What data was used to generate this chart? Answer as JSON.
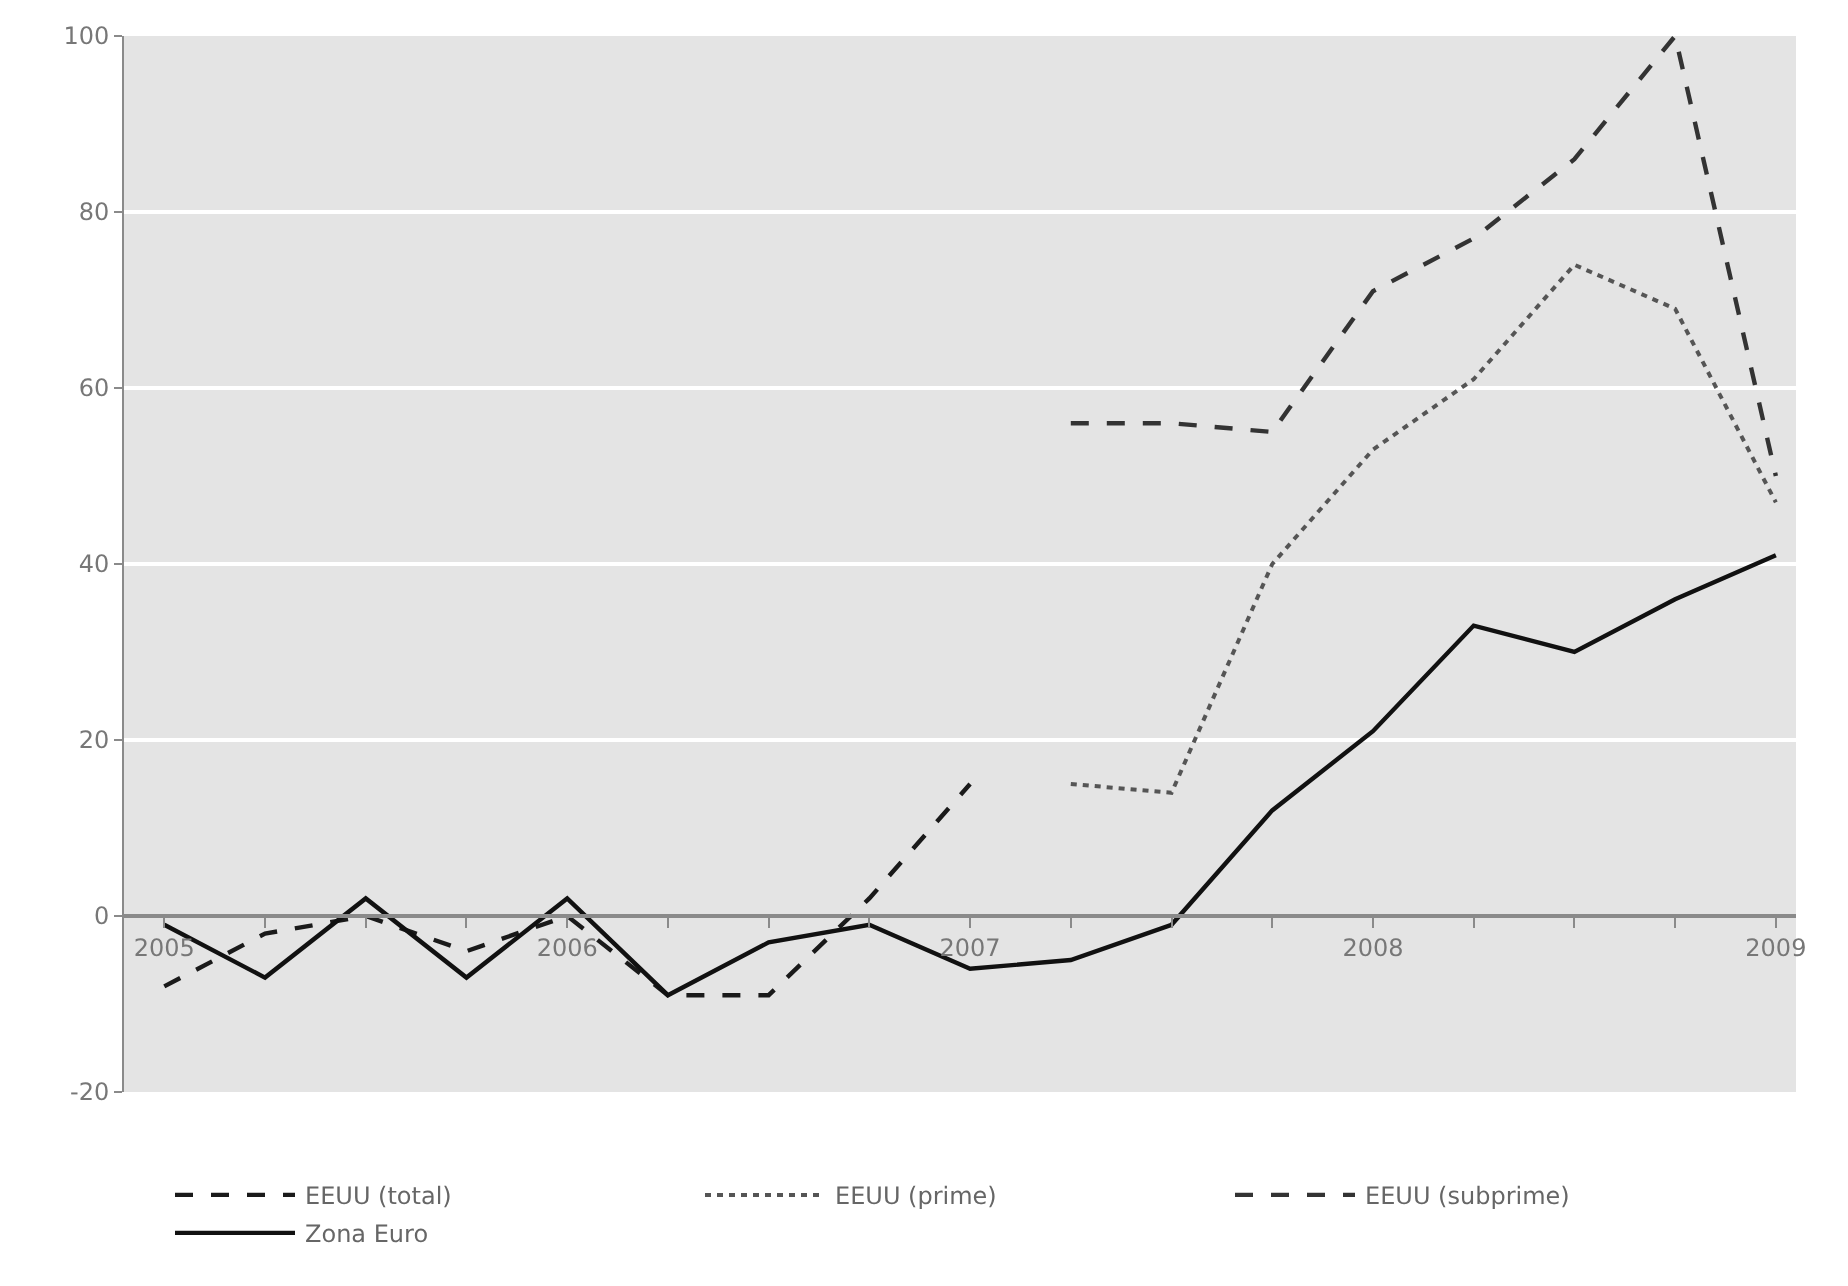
{
  "chart_data": {
    "type": "line",
    "x": [
      2005,
      2005.25,
      2005.5,
      2005.75,
      2006,
      2006.25,
      2006.5,
      2006.75,
      2007,
      2007.25,
      2007.5,
      2007.75,
      2008,
      2008.25,
      2008.5,
      2008.75,
      2009
    ],
    "series": [
      {
        "name": "EEUU (total)",
        "color": "#1a1a1a",
        "line_style": "dashed",
        "values": [
          -8,
          -2,
          0,
          -4,
          0,
          -9,
          -9,
          2,
          15,
          null,
          null,
          null,
          null,
          null,
          null,
          null,
          null
        ]
      },
      {
        "name": "EEUU (prime)",
        "color": "#555555",
        "line_style": "dotted",
        "values": [
          null,
          null,
          null,
          null,
          null,
          null,
          null,
          null,
          null,
          15,
          14,
          40,
          53,
          61,
          74,
          69,
          47
        ]
      },
      {
        "name": "EEUU (subprime)",
        "color": "#333333",
        "line_style": "dashed",
        "values": [
          null,
          null,
          null,
          null,
          null,
          null,
          null,
          null,
          null,
          56,
          56,
          55,
          71,
          77,
          86,
          100,
          50
        ]
      },
      {
        "name": "Zona Euro",
        "color": "#111111",
        "line_style": "solid",
        "values": [
          -1,
          -7,
          2,
          -7,
          2,
          -9,
          -3,
          -1,
          -6,
          -5,
          -1,
          12,
          21,
          33,
          30,
          36,
          41
        ]
      }
    ],
    "xlim": [
      2004.9,
      2009.05
    ],
    "xticks": [
      2005,
      {
        "value": 2005.25,
        "label": null
      },
      {
        "value": 2005.5,
        "label": null
      },
      {
        "value": 2005.75,
        "label": null
      },
      2006,
      {
        "value": 2006.25,
        "label": null
      },
      {
        "value": 2006.5,
        "label": null
      },
      {
        "value": 2006.75,
        "label": null
      },
      2007,
      {
        "value": 2007.25,
        "label": null
      },
      {
        "value": 2007.5,
        "label": null
      },
      {
        "value": 2007.75,
        "label": null
      },
      2008,
      {
        "value": 2008.25,
        "label": null
      },
      {
        "value": 2008.5,
        "label": null
      },
      {
        "value": 2008.75,
        "label": null
      },
      2009
    ],
    "ylim": [
      -20,
      100
    ],
    "yticks": [
      -20,
      0,
      20,
      40,
      60,
      80,
      100
    ],
    "grid": "y",
    "legend": "bottom",
    "marker": "none"
  }
}
